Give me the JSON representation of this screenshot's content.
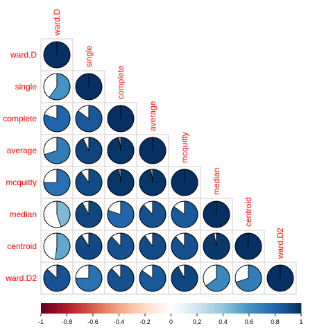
{
  "chart_data": {
    "type": "heatmap",
    "style": "pie",
    "shape": "lower-triangle",
    "labels": [
      "ward.D",
      "single",
      "complete",
      "average",
      "mcquitty",
      "median",
      "centroid",
      "ward.D2"
    ],
    "matrix": [
      [
        1.0
      ],
      [
        0.6,
        1.0
      ],
      [
        0.8,
        0.85,
        1.0
      ],
      [
        0.7,
        0.93,
        0.98,
        1.0
      ],
      [
        0.75,
        0.9,
        0.98,
        0.98,
        1.0
      ],
      [
        0.45,
        0.92,
        0.8,
        0.88,
        0.85,
        1.0
      ],
      [
        0.52,
        0.91,
        0.88,
        0.9,
        0.88,
        0.97,
        1.0
      ],
      [
        0.87,
        0.75,
        0.88,
        0.85,
        0.92,
        0.65,
        0.7,
        1.0
      ]
    ],
    "legend": {
      "position": "bottom",
      "range": [
        -1,
        1
      ],
      "ticks": [
        "-1",
        "-0.8",
        "-0.6",
        "-0.4",
        "-0.2",
        "0",
        "0.2",
        "0.4",
        "0.6",
        "0.8",
        "1"
      ]
    },
    "colors": {
      "negative_end": "#67001f",
      "positive_end": "#053061",
      "label_color": "#ff0000",
      "grid_color": "#cccccc"
    }
  }
}
